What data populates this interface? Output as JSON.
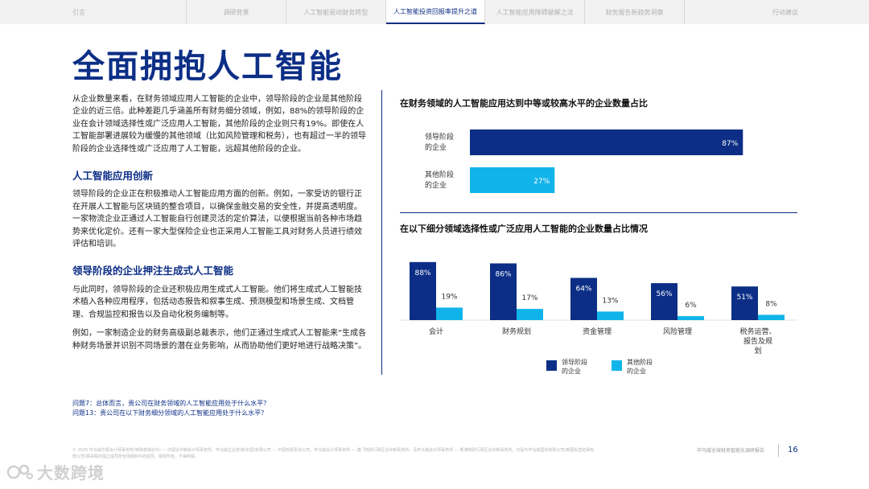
{
  "tabs": [
    {
      "label": "引言"
    },
    {
      "label": "调研背景"
    },
    {
      "label": "人工智能驱动财务转型"
    },
    {
      "label": "人工智能投资回报率提升之道"
    },
    {
      "label": "人工智能应用障碍破解之法"
    },
    {
      "label": "财务报告新趋势洞察"
    },
    {
      "label": "行动建议"
    }
  ],
  "page_title": "全面拥抱人工智能",
  "intro": "从企业数量来看，在财务领域应用人工智能的企业中，领导阶段的企业是其他阶段企业的近三倍。此种差距几乎涵盖所有财务细分领域，例如，88%的领导阶段的企业在会计领域选择性或广泛应用人工智能，其他阶段的企业则只有19%。即使在人工智能部署进展较为缓慢的其他领域（比如风险管理和税务），也有超过一半的领导阶段的企业选择性或广泛应用了人工智能，远超其他阶段的企业。",
  "section1": {
    "heading": "人工智能应用创新",
    "body": "领导阶段的企业正在积极推动人工智能应用方面的创新。例如，一家受访的银行正在开展人工智能与区块链的整合项目，以确保金融交易的安全性，并提高透明度。一家物流企业正通过人工智能自行创建灵活的定价算法，以便根据当前各种市场趋势来优化定价。还有一家大型保险企业也正采用人工智能工具对财务人员进行绩效评估和培训。"
  },
  "section2": {
    "heading": "领导阶段的企业押注生成式人工智能",
    "body1": "与此同时，领导阶段的企业还积极应用生成式人工智能。他们将生成式人工智能技术植入各种应用程序，包括动态报告和叙事生成、预测模型和场景生成、文档管理、合规监控和报告以及自动化税务编制等。",
    "body2": "例如，一家制造企业的财务高级副总裁表示，他们正通过生成式人工智能来“生成各种财务场景并识别不同场景的潜在业务影响，从而协助他们更好地进行战略决策”。"
  },
  "colors": {
    "leader": "#0c2e86",
    "other": "#11b4ea",
    "accent": "#0c2e86"
  },
  "chart_data": [
    {
      "type": "bar",
      "orientation": "horizontal",
      "title": "在财务领域的人工智能应用达到中等或较高水平的企业数量占比",
      "categories": [
        "领导阶段的企业",
        "其他阶段的企业"
      ],
      "category_lines": [
        [
          "领导阶段",
          "的企业"
        ],
        [
          "其他阶段",
          "的企业"
        ]
      ],
      "values": [
        87,
        27
      ],
      "value_labels": [
        "87%",
        "27%"
      ],
      "xlim": [
        0,
        100
      ]
    },
    {
      "type": "bar",
      "title": "在以下细分领域选择性或广泛应用人工智能的企业数量占比情况",
      "categories": [
        "会计",
        "财务规划",
        "资金管理",
        "风险管理",
        "税务运营、报告及规划"
      ],
      "category_lines": [
        [
          "会计"
        ],
        [
          "财务规划"
        ],
        [
          "资金管理"
        ],
        [
          "风险管理"
        ],
        [
          "税务运营、",
          "报告及规",
          "划"
        ]
      ],
      "series": [
        {
          "name": "领导阶段的企业",
          "name_lines": [
            "领导阶段",
            "的企业"
          ],
          "values": [
            88,
            86,
            64,
            56,
            51
          ],
          "labels": [
            "88%",
            "86%",
            "64%",
            "56%",
            "51%"
          ]
        },
        {
          "name": "其他阶段的企业",
          "name_lines": [
            "其他阶段",
            "的企业"
          ],
          "values": [
            19,
            17,
            13,
            6,
            8
          ],
          "labels": [
            "19%",
            "17%",
            "13%",
            "6%",
            "8%"
          ]
        }
      ],
      "ylim": [
        0,
        100
      ],
      "legend": "bottom"
    }
  ],
  "questions": [
    "问题7：总体而言，贵公司在财务领域的人工智能应用处于什么水平？",
    "问题13：贵公司在以下财务细分领域的人工智能应用处于什么水平？"
  ],
  "legal": "© 2025 毕马威华振会计师事务所(特殊普通合伙) — 中国合伙制会计师事务所，毕马威企业咨询(中国)有限公司 — 中国有限责任公司，毕马威会计师事务所 — 澳门特别行政区合伙制事务所，及毕马威会计师事务所 — 香港特别行政区合伙制事务所，均是与毕马威国际有限公司(英国私营担保有限公司)相关联的独立成员所全球组织中的成员。版权所有，不得转载。",
  "footer_report": "毕马威全球财务智能化调研报告",
  "page_number": "16",
  "watermark": "大数跨境"
}
